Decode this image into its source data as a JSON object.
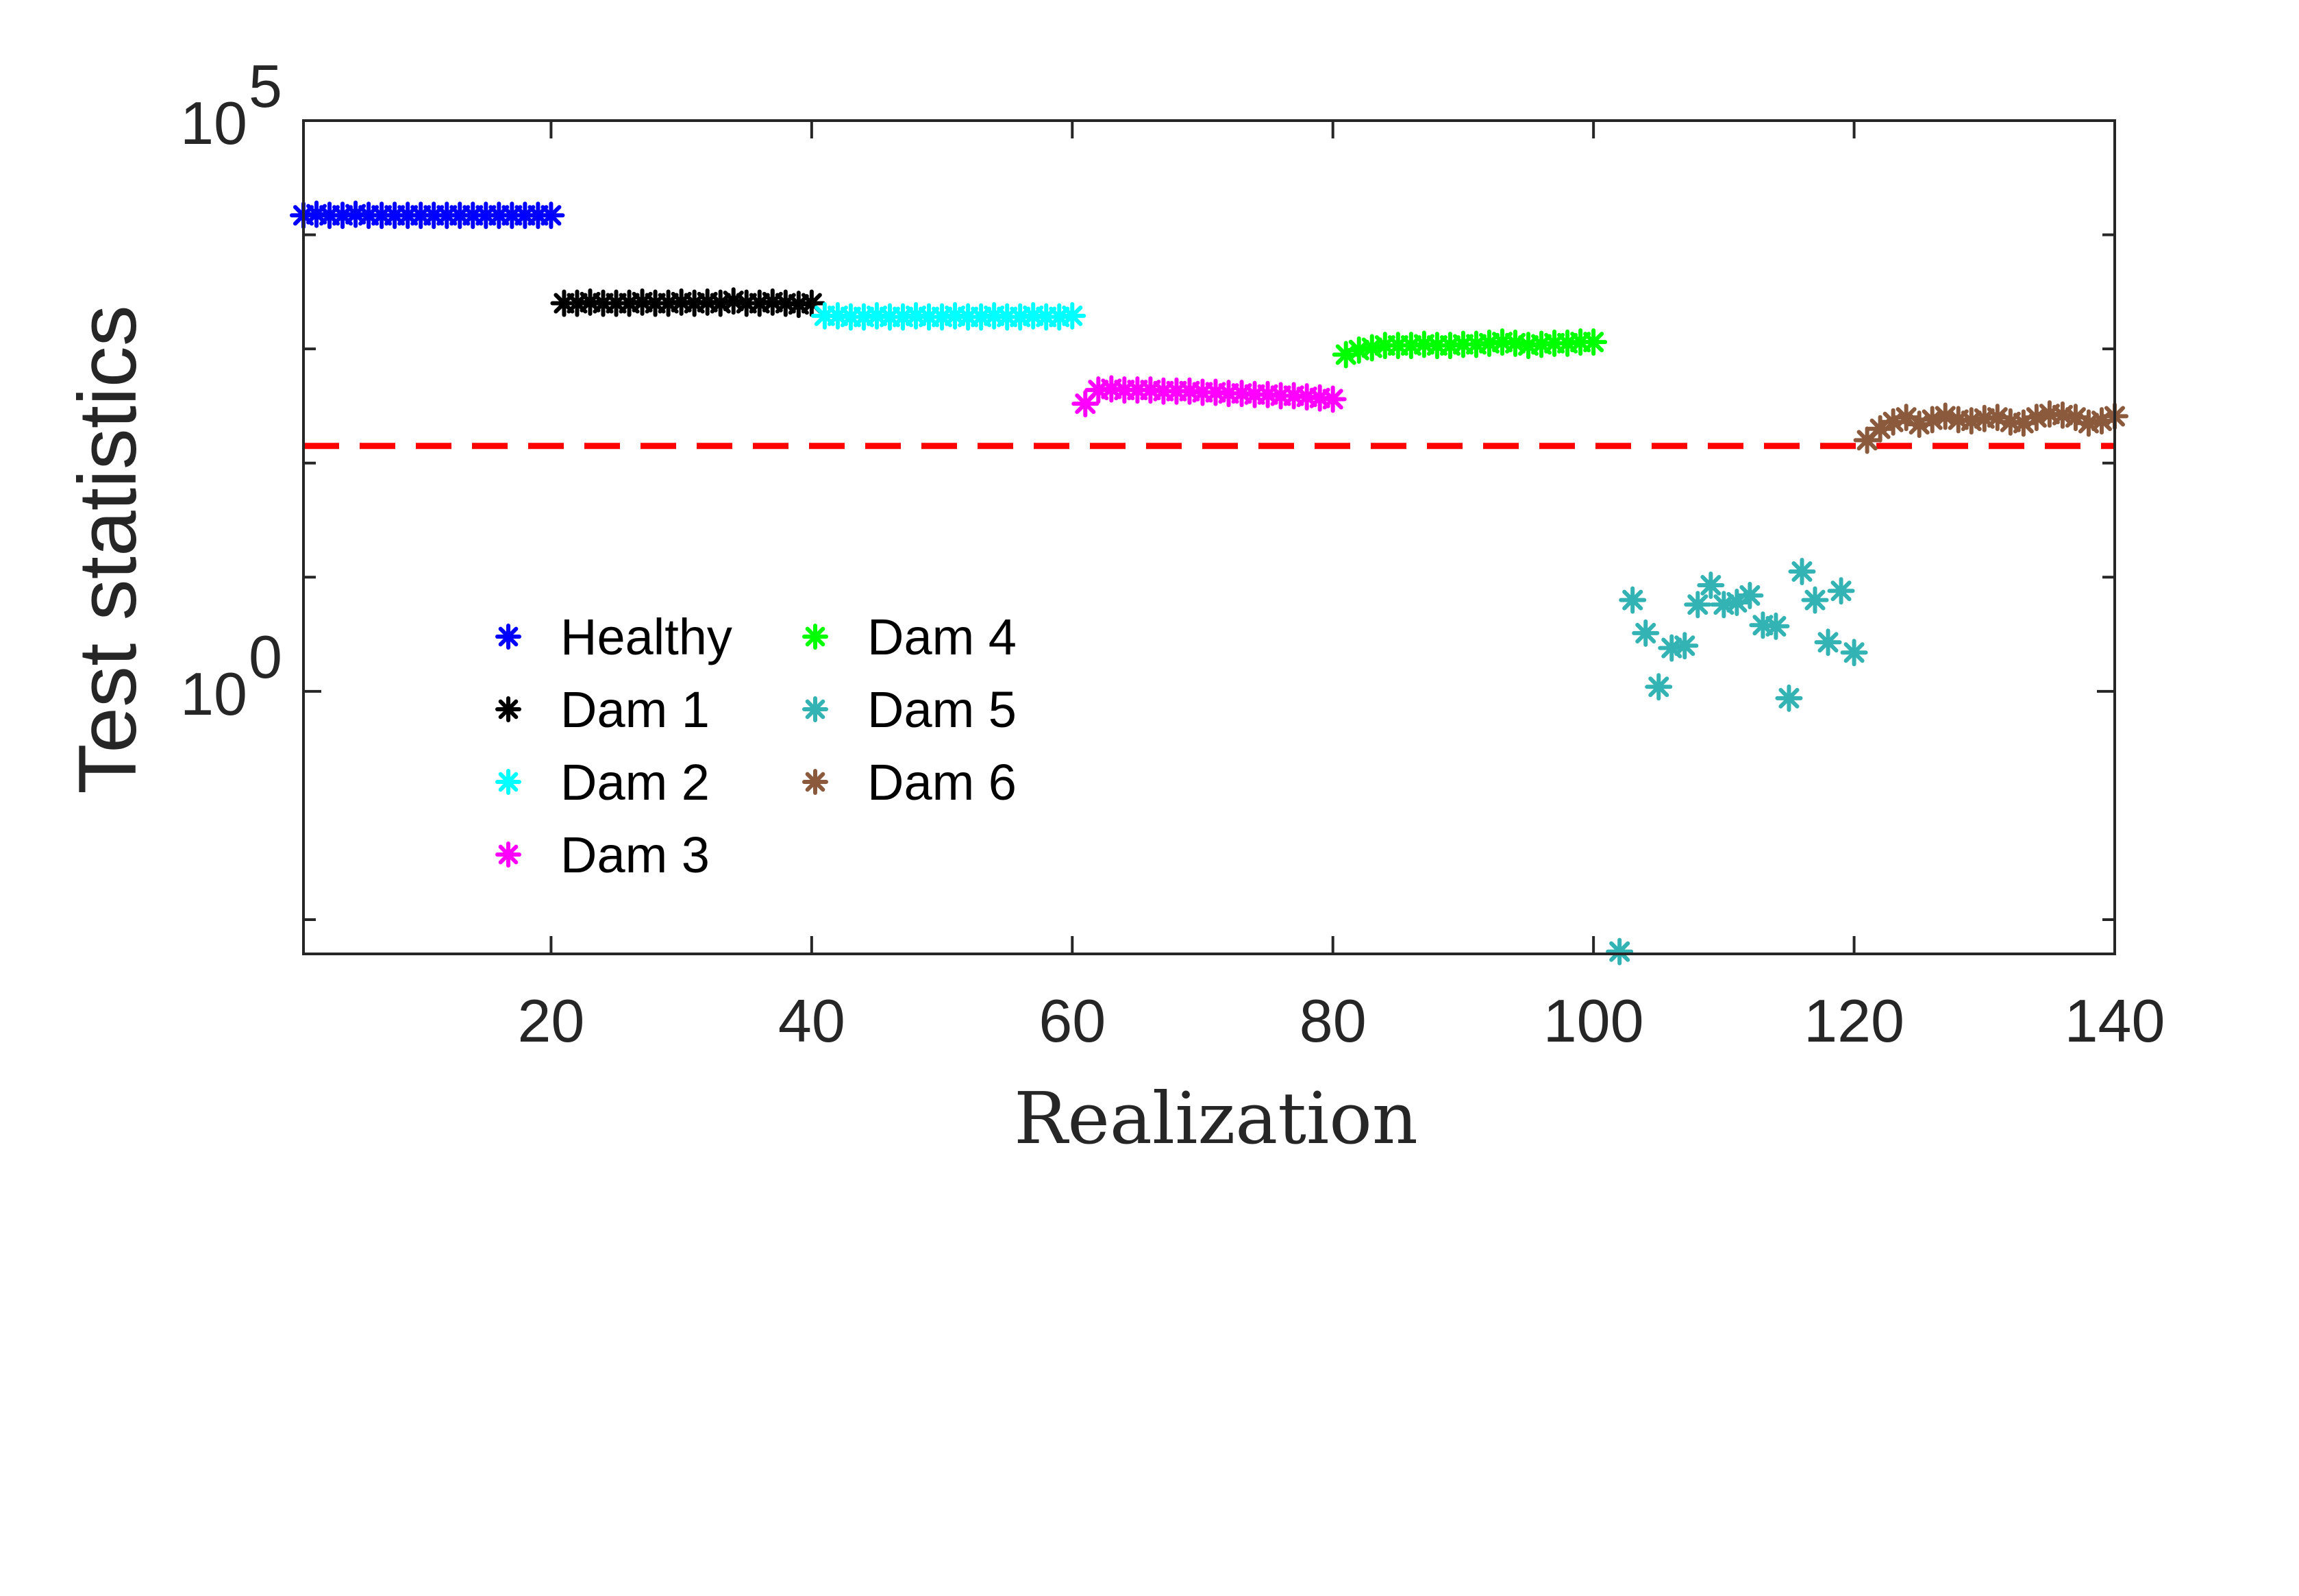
{
  "chart_data": {
    "type": "scatter",
    "y_scale": "log",
    "ylabel": "Test statistics",
    "xlabel": "Realization",
    "xlim": [
      1,
      140
    ],
    "ylim_log10": [
      -2.3,
      5
    ],
    "x_ticks": [
      20,
      40,
      60,
      80,
      100,
      120,
      140
    ],
    "x_tick_labels": [
      "20",
      "40",
      "60",
      "80",
      "100",
      "120",
      "140"
    ],
    "y_major_ticks": [
      {
        "base": "10",
        "exp": "0",
        "log10": 0
      },
      {
        "base": "10",
        "exp": "5",
        "log10": 5
      }
    ],
    "y_minor_ticks_log10": [
      -2,
      1,
      2,
      3,
      4
    ],
    "threshold": {
      "value_log10": 2.15,
      "color": "#ff0000",
      "style": "dashed"
    },
    "legend": {
      "placement": "center-left",
      "columns": 2
    },
    "series": [
      {
        "name": "Healthy",
        "color": "#0000ff",
        "x": [
          1,
          2,
          3,
          4,
          5,
          6,
          7,
          8,
          9,
          10,
          11,
          12,
          13,
          14,
          15,
          16,
          17,
          18,
          19,
          20
        ],
        "log10_y": [
          4.17,
          4.18,
          4.17,
          4.17,
          4.18,
          4.17,
          4.17,
          4.17,
          4.17,
          4.17,
          4.17,
          4.17,
          4.17,
          4.17,
          4.17,
          4.17,
          4.17,
          4.17,
          4.17,
          4.17
        ]
      },
      {
        "name": "Dam 1",
        "color": "#000000",
        "x": [
          21,
          22,
          23,
          24,
          25,
          26,
          27,
          28,
          29,
          30,
          31,
          32,
          33,
          34,
          35,
          36,
          37,
          38,
          39,
          40
        ],
        "log10_y": [
          3.4,
          3.4,
          3.41,
          3.4,
          3.4,
          3.4,
          3.41,
          3.4,
          3.4,
          3.41,
          3.4,
          3.41,
          3.4,
          3.42,
          3.4,
          3.4,
          3.41,
          3.4,
          3.39,
          3.4
        ]
      },
      {
        "name": "Dam 2",
        "color": "#00ffff",
        "x": [
          41,
          42,
          43,
          44,
          45,
          46,
          47,
          48,
          49,
          50,
          51,
          52,
          53,
          54,
          55,
          56,
          57,
          58,
          59,
          60
        ],
        "log10_y": [
          3.29,
          3.29,
          3.28,
          3.28,
          3.29,
          3.28,
          3.28,
          3.29,
          3.28,
          3.28,
          3.29,
          3.28,
          3.28,
          3.29,
          3.28,
          3.28,
          3.29,
          3.28,
          3.28,
          3.29
        ]
      },
      {
        "name": "Dam 3",
        "color": "#ff00ff",
        "x": [
          61,
          62,
          63,
          64,
          65,
          66,
          67,
          68,
          69,
          70,
          71,
          72,
          73,
          74,
          75,
          76,
          77,
          78,
          79,
          80
        ],
        "log10_y": [
          2.52,
          2.64,
          2.65,
          2.64,
          2.64,
          2.64,
          2.63,
          2.63,
          2.63,
          2.62,
          2.62,
          2.61,
          2.61,
          2.6,
          2.6,
          2.59,
          2.59,
          2.58,
          2.57,
          2.56
        ]
      },
      {
        "name": "Dam 4",
        "color": "#00ff00",
        "x": [
          81,
          82,
          83,
          84,
          85,
          86,
          87,
          88,
          89,
          90,
          91,
          92,
          93,
          94,
          95,
          96,
          97,
          98,
          99,
          100
        ],
        "log10_y": [
          2.95,
          2.99,
          3.01,
          3.03,
          3.03,
          3.03,
          3.04,
          3.03,
          3.03,
          3.04,
          3.04,
          3.05,
          3.06,
          3.05,
          3.03,
          3.04,
          3.05,
          3.05,
          3.06,
          3.06
        ]
      },
      {
        "name": "Dam 5",
        "color": "#33b3b3",
        "x": [
          102,
          103,
          104,
          105,
          106,
          107,
          108,
          109,
          110,
          111,
          112,
          113,
          114,
          115,
          116,
          117,
          118,
          119,
          120
        ],
        "log10_y": [
          -2.28,
          0.8,
          0.51,
          0.04,
          0.38,
          0.4,
          0.76,
          0.93,
          0.76,
          0.78,
          0.84,
          0.58,
          0.57,
          -0.06,
          1.05,
          0.8,
          0.43,
          0.88,
          0.34
        ]
      },
      {
        "name": "Dam 6",
        "color": "#8b5a3c",
        "x": [
          121,
          122,
          123,
          124,
          125,
          126,
          127,
          128,
          129,
          130,
          131,
          132,
          133,
          134,
          135,
          136,
          137,
          138,
          139,
          140
        ],
        "log10_y": [
          2.2,
          2.3,
          2.36,
          2.4,
          2.34,
          2.38,
          2.41,
          2.38,
          2.37,
          2.39,
          2.4,
          2.36,
          2.35,
          2.4,
          2.43,
          2.42,
          2.4,
          2.35,
          2.37,
          2.41
        ]
      }
    ]
  }
}
